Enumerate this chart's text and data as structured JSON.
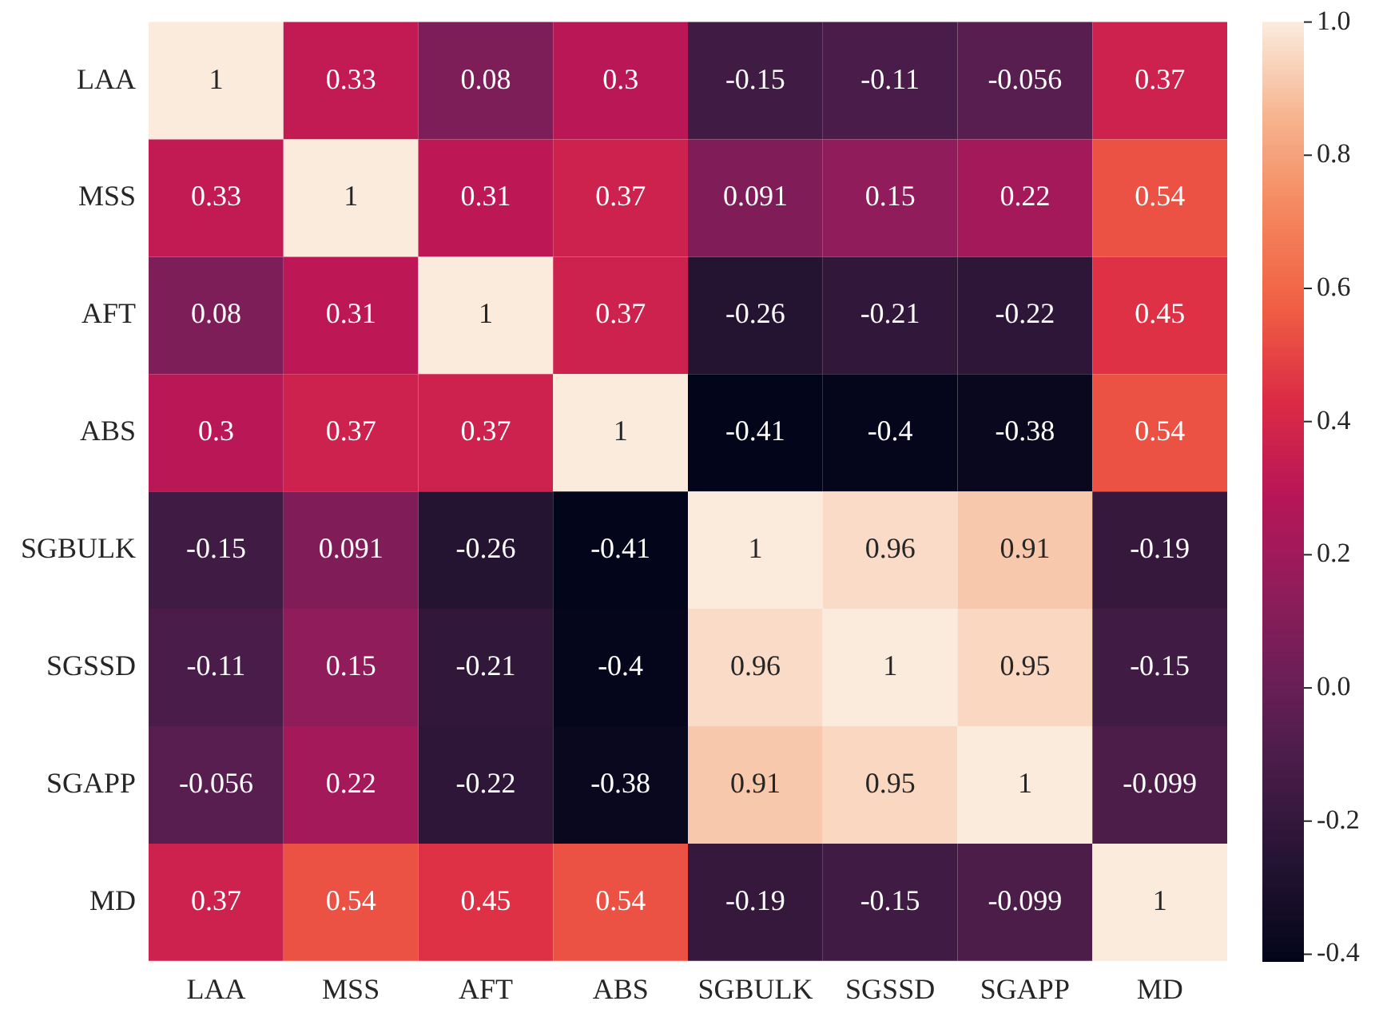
{
  "chart_data": {
    "type": "heatmap",
    "categories": [
      "LAA",
      "MSS",
      "AFT",
      "ABS",
      "SGBULK",
      "SGSSD",
      "SGAPP",
      "MD"
    ],
    "y_categories": [
      "LAA",
      "MSS",
      "AFT",
      "ABS",
      "SGBULK",
      "SGSSD",
      "SGAPP",
      "MD"
    ],
    "cells": [
      [
        1,
        0.33,
        0.08,
        0.3,
        -0.15,
        -0.11,
        -0.056,
        0.37
      ],
      [
        0.33,
        1,
        0.31,
        0.37,
        0.091,
        0.15,
        0.22,
        0.54
      ],
      [
        0.08,
        0.31,
        1,
        0.37,
        -0.26,
        -0.21,
        -0.22,
        0.45
      ],
      [
        0.3,
        0.37,
        0.37,
        1,
        -0.41,
        -0.4,
        -0.38,
        0.54
      ],
      [
        -0.15,
        0.091,
        -0.26,
        -0.41,
        1,
        0.96,
        0.91,
        -0.19
      ],
      [
        -0.11,
        0.15,
        -0.21,
        -0.4,
        0.96,
        1,
        0.95,
        -0.15
      ],
      [
        -0.056,
        0.22,
        -0.22,
        -0.38,
        0.91,
        0.95,
        1,
        -0.099
      ],
      [
        0.37,
        0.54,
        0.45,
        0.54,
        -0.19,
        -0.15,
        -0.099,
        1
      ]
    ],
    "data_labels": true,
    "clim": [
      -0.41,
      1
    ],
    "cticks": [
      {
        "value": -0.4,
        "label": "-0.4"
      },
      {
        "value": -0.2,
        "label": "-0.2"
      },
      {
        "value": 0,
        "label": "0.0"
      },
      {
        "value": 0.2,
        "label": "0.2"
      },
      {
        "value": 0.4,
        "label": "0.4"
      },
      {
        "value": 0.6,
        "label": "0.6"
      },
      {
        "value": 0.8,
        "label": "0.8"
      },
      {
        "value": 1,
        "label": "1.0"
      }
    ]
  }
}
